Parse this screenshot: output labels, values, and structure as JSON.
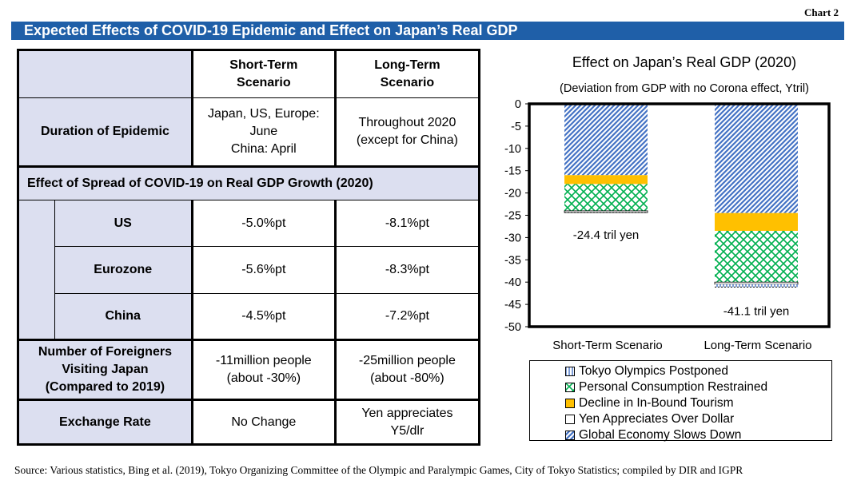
{
  "chart_label": "Chart 2",
  "page_title": "Expected Effects of COVID-19 Epidemic and Effect on Japan’s Real GDP",
  "table": {
    "col_headers": [
      [
        "Short-Term",
        "Scenario"
      ],
      [
        "Long-Term",
        "Scenario"
      ]
    ],
    "duration": {
      "label": "Duration of Epidemic",
      "short": [
        "Japan, US, Europe:",
        "June",
        "China: April"
      ],
      "long": [
        "Throughout 2020",
        "(except for China)"
      ]
    },
    "gdp_section_label": "Effect of Spread of COVID-19 on Real GDP Growth (2020)",
    "gdp_rows": [
      {
        "label": "US",
        "short": "-5.0%pt",
        "long": "-8.1%pt"
      },
      {
        "label": "Eurozone",
        "short": "-5.6%pt",
        "long": "-8.3%pt"
      },
      {
        "label": "China",
        "short": "-4.5%pt",
        "long": "-7.2%pt"
      }
    ],
    "foreigners": {
      "label": [
        "Number of Foreigners",
        "Visiting Japan",
        "(Compared to 2019)"
      ],
      "short": [
        "-11million people",
        "(about -30%)"
      ],
      "long": [
        "-25million people",
        "(about -80%)"
      ]
    },
    "exchange": {
      "label": "Exchange Rate",
      "short": "No Change",
      "long": [
        "Yen appreciates",
        "Y5/dlr"
      ]
    }
  },
  "chart_data": {
    "type": "bar",
    "stacked": true,
    "title": "Effect on Japan’s Real GDP (2020)",
    "subtitle": "(Deviation from GDP with no Corona effect, Ytril)",
    "categories": [
      "Short-Term Scenario",
      "Long-Term Scenario"
    ],
    "ylim": [
      -50,
      0
    ],
    "yticks": [
      0,
      -5,
      -10,
      -15,
      -20,
      -25,
      -30,
      -35,
      -40,
      -45,
      -50
    ],
    "series": [
      {
        "name": "Global Economy Slows Down",
        "values": [
          -16.0,
          -24.5
        ],
        "color": "#4472c4",
        "pattern": "diagonal"
      },
      {
        "name": "Decline in In-Bound Tourism",
        "values": [
          -2.0,
          -4.0
        ],
        "color": "#ffc000",
        "pattern": "solid"
      },
      {
        "name": "Personal Consumption Restrained",
        "values": [
          -6.0,
          -11.5
        ],
        "color": "#00b050",
        "pattern": "lattice"
      },
      {
        "name": "Yen Appreciates Over Dollar",
        "values": [
          -0.4,
          -0.5
        ],
        "color": "#ffffff",
        "pattern": "hollow"
      },
      {
        "name": "Tokyo Olympics Postponed",
        "values": [
          0,
          -0.6
        ],
        "color": "#4472c4",
        "pattern": "vertical"
      }
    ],
    "totals": [
      -24.4,
      -41.1
    ],
    "data_labels": [
      "-24.4 tril yen",
      "-41.1 tril yen"
    ],
    "legend": {
      "position": "bottom",
      "order": [
        "Tokyo Olympics Postponed",
        "Personal Consumption Restrained",
        "Decline in In-Bound Tourism",
        "Yen Appreciates Over Dollar",
        "Global Economy Slows Down"
      ],
      "patterns": [
        "vertical",
        "lattice",
        "solid",
        "hollow",
        "diagonal"
      ],
      "colors": [
        "#4472c4",
        "#00b050",
        "#ffc000",
        "#ffffff",
        "#4472c4"
      ]
    }
  },
  "source": "Source: Various statistics, Bing et al. (2019), Tokyo Organizing Committee of the Olympic and Paralympic Games, City of Tokyo Statistics; compiled by DIR and IGPR"
}
